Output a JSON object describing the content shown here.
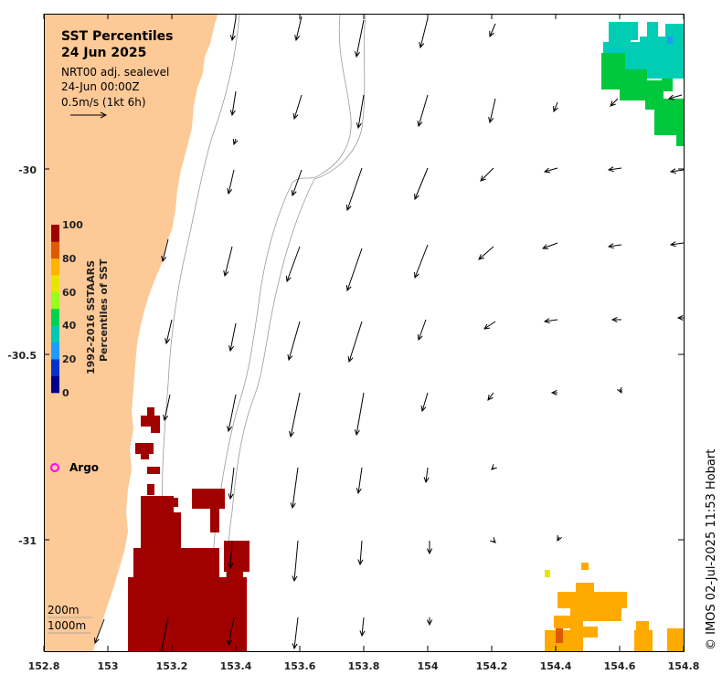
{
  "map": {
    "title_line1": "SST Percentiles",
    "title_line2": "24 Jun 2025",
    "source": "NRT00 adj. sealevel",
    "datetime": "24-Jun 00:00Z",
    "scale_text": "0.5m/s (1kt 6h)",
    "credit": "© IMOS 02-Jul-2025 11:53 Hobart",
    "argo_label": "Argo",
    "depth_labels": [
      "200m",
      "1000m"
    ],
    "x_ticks": [
      "152.8",
      "153",
      "153.2",
      "153.4",
      "153.6",
      "153.8",
      "154",
      "154.2",
      "154.4",
      "154.6",
      "154.8"
    ],
    "y_ticks": [
      "-30",
      "-30.5",
      "-31"
    ],
    "colorbar": {
      "title_line1": "1992-2016 SSTAARS",
      "title_line2": "Percentiles of SST",
      "ticks": [
        "100",
        "80",
        "60",
        "40",
        "20",
        "0"
      ],
      "colors": [
        "#00008c",
        "#0033cc",
        "#1c9cff",
        "#00c8b4",
        "#00d250",
        "#96ff1e",
        "#e6e600",
        "#ffb400",
        "#dc5a00",
        "#a00000"
      ]
    },
    "colors": {
      "land": "#fdc997",
      "red": "#a00000",
      "orange": "#ffaa00",
      "teal": "#00cdb4",
      "green": "#00c83c",
      "argo": "#ff00ff"
    }
  }
}
